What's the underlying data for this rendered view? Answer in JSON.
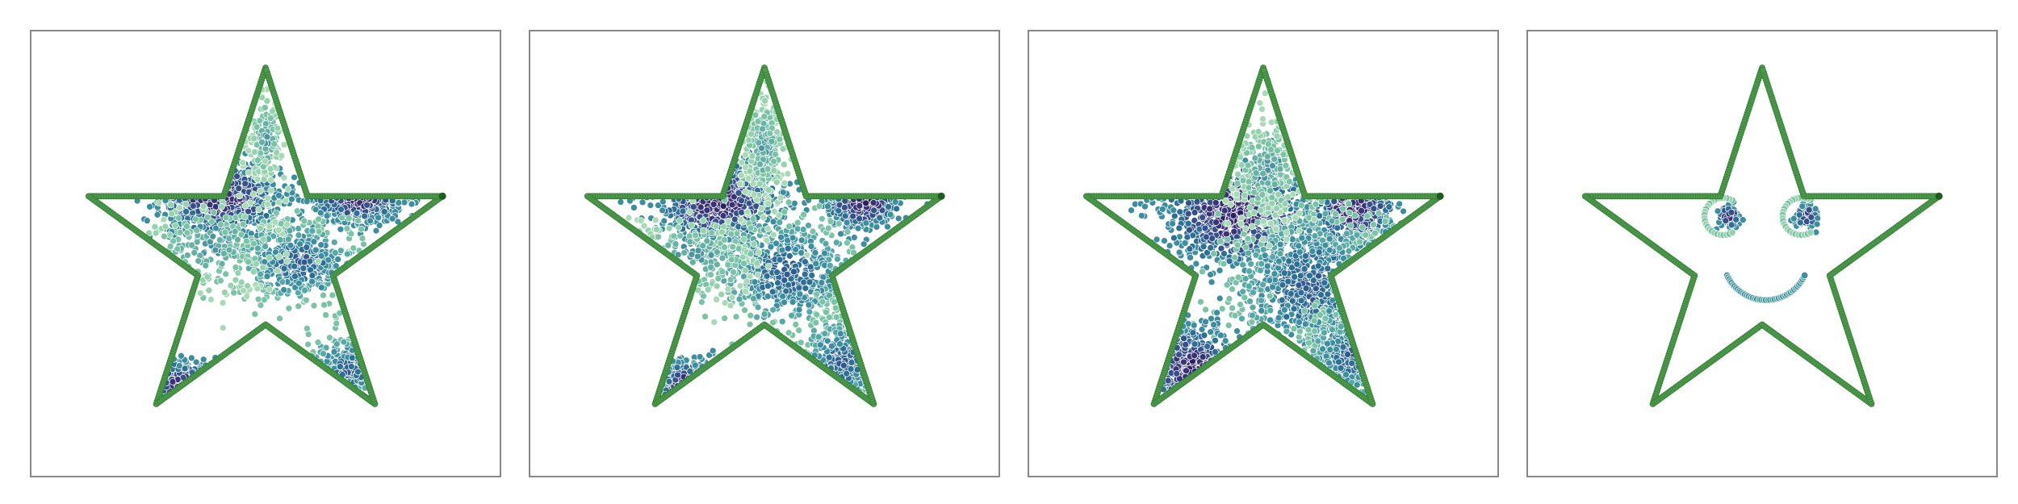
{
  "chart_data": [
    {
      "type": "scatter",
      "panel": "star-scatter-1",
      "xlim": [
        -1.2,
        1.2
      ],
      "ylim": [
        -1.2,
        1.2
      ],
      "grid": false,
      "legend": "none",
      "colors": {
        "outline": "#4f9a4f",
        "outline_edge": "#2f7d2f",
        "cluster_dark": "#3a3276",
        "cluster_mid": "#2f6f96",
        "cluster_light": "#7bc3a6",
        "frame": "#888888"
      },
      "clusters": [
        {
          "cx": -0.25,
          "cy": 0.3,
          "sx": 0.16,
          "sy": 0.1,
          "n": 700,
          "tone": "dark"
        },
        {
          "cx": 0.5,
          "cy": 0.31,
          "sx": 0.12,
          "sy": 0.07,
          "n": 420,
          "tone": "dark"
        },
        {
          "cx": 0.18,
          "cy": -0.05,
          "sx": 0.17,
          "sy": 0.11,
          "n": 520,
          "tone": "mid"
        },
        {
          "cx": 0.0,
          "cy": 0.62,
          "sx": 0.05,
          "sy": 0.13,
          "n": 170,
          "tone": "light"
        },
        {
          "cx": -0.45,
          "cy": -0.72,
          "sx": 0.09,
          "sy": 0.07,
          "n": 210,
          "tone": "dark"
        },
        {
          "cx": -0.3,
          "cy": 0.04,
          "sx": 0.2,
          "sy": 0.15,
          "n": 180,
          "tone": "light"
        },
        {
          "cx": 0.45,
          "cy": -0.62,
          "sx": 0.12,
          "sy": 0.09,
          "n": 170,
          "tone": "mid"
        }
      ]
    },
    {
      "type": "scatter",
      "panel": "star-scatter-2",
      "xlim": [
        -1.2,
        1.2
      ],
      "ylim": [
        -1.2,
        1.2
      ],
      "grid": false,
      "legend": "none",
      "colors": {
        "outline": "#4f9a4f",
        "outline_edge": "#2f7d2f",
        "cluster_dark": "#3a3276",
        "cluster_mid": "#2f6f96",
        "cluster_light": "#7bc3a6",
        "frame": "#888888"
      },
      "clusters": [
        {
          "cx": -0.25,
          "cy": 0.28,
          "sx": 0.17,
          "sy": 0.11,
          "n": 640,
          "tone": "dark"
        },
        {
          "cx": 0.53,
          "cy": 0.28,
          "sx": 0.1,
          "sy": 0.07,
          "n": 320,
          "tone": "dark"
        },
        {
          "cx": 0.12,
          "cy": -0.1,
          "sx": 0.2,
          "sy": 0.15,
          "n": 560,
          "tone": "mid"
        },
        {
          "cx": 0.0,
          "cy": 0.58,
          "sx": 0.06,
          "sy": 0.16,
          "n": 240,
          "tone": "light"
        },
        {
          "cx": -0.4,
          "cy": -0.72,
          "sx": 0.09,
          "sy": 0.07,
          "n": 200,
          "tone": "dark"
        },
        {
          "cx": 0.42,
          "cy": -0.58,
          "sx": 0.13,
          "sy": 0.12,
          "n": 260,
          "tone": "mid"
        },
        {
          "cx": -0.38,
          "cy": -0.02,
          "sx": 0.22,
          "sy": 0.12,
          "n": 170,
          "tone": "light"
        }
      ]
    },
    {
      "type": "scatter",
      "panel": "star-scatter-3",
      "xlim": [
        -1.2,
        1.2
      ],
      "ylim": [
        -1.2,
        1.2
      ],
      "grid": false,
      "legend": "none",
      "colors": {
        "outline": "#4f9a4f",
        "outline_edge": "#2f7d2f",
        "cluster_dark": "#3a3276",
        "cluster_mid": "#2f6f96",
        "cluster_light": "#7bc3a6",
        "frame": "#888888"
      },
      "clusters": [
        {
          "cx": -0.15,
          "cy": 0.22,
          "sx": 0.2,
          "sy": 0.15,
          "n": 760,
          "tone": "dark"
        },
        {
          "cx": 0.48,
          "cy": 0.24,
          "sx": 0.12,
          "sy": 0.09,
          "n": 380,
          "tone": "dark"
        },
        {
          "cx": 0.25,
          "cy": -0.18,
          "sx": 0.22,
          "sy": 0.22,
          "n": 720,
          "tone": "mid"
        },
        {
          "cx": 0.02,
          "cy": 0.45,
          "sx": 0.1,
          "sy": 0.15,
          "n": 260,
          "tone": "light"
        },
        {
          "cx": -0.38,
          "cy": -0.62,
          "sx": 0.12,
          "sy": 0.12,
          "n": 280,
          "tone": "dark"
        },
        {
          "cx": 0.48,
          "cy": -0.55,
          "sx": 0.13,
          "sy": 0.12,
          "n": 300,
          "tone": "mid"
        }
      ]
    },
    {
      "type": "scatter",
      "panel": "star-smiley",
      "xlim": [
        -1.2,
        1.2
      ],
      "ylim": [
        -1.2,
        1.2
      ],
      "grid": false,
      "legend": "none",
      "colors": {
        "outline": "#4f9a4f",
        "outline_edge": "#2f7d2f",
        "cluster_dark": "#3a3276",
        "cluster_mid": "#2f6f96",
        "cluster_light": "#7bc3a6",
        "frame": "#888888"
      },
      "clusters": [
        {
          "cx": -0.18,
          "cy": 0.2,
          "sx": 0.03,
          "sy": 0.03,
          "n": 90,
          "tone": "dark"
        },
        {
          "cx": 0.24,
          "cy": 0.2,
          "sx": 0.03,
          "sy": 0.03,
          "n": 90,
          "tone": "dark"
        }
      ],
      "arcs": [
        {
          "cx": -0.21,
          "cy": 0.2,
          "r": 0.1,
          "a0": 60,
          "a1": 300,
          "n": 26,
          "tone": "light"
        },
        {
          "cx": 0.21,
          "cy": 0.2,
          "r": 0.1,
          "a0": 60,
          "a1": 300,
          "n": 26,
          "tone": "light"
        },
        {
          "cx": 0.02,
          "cy": -0.02,
          "r": 0.23,
          "a0": 205,
          "a1": 335,
          "n": 45,
          "tone": "mid"
        }
      ]
    }
  ]
}
